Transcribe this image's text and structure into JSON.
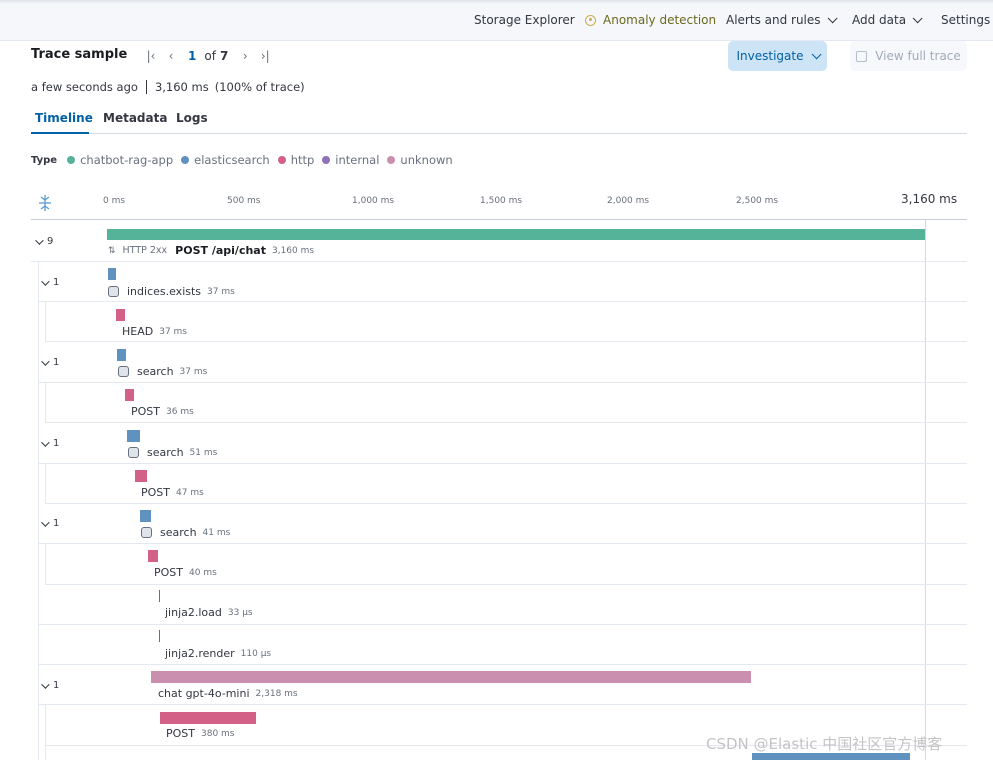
{
  "header": {
    "nav": [
      "Storage Explorer",
      "Anomaly detection",
      "Alerts and rules",
      "Add data",
      "Settings"
    ]
  },
  "trace": {
    "title": "Trace sample",
    "page_current": "1",
    "page_of": "of",
    "page_total": "7",
    "investigate_label": "Investigate",
    "view_full_label": "View full trace",
    "time_ago": "a few seconds ago",
    "duration": "3,160 ms",
    "percent": "(100% of trace)"
  },
  "tabs": [
    "Timeline",
    "Metadata",
    "Logs"
  ],
  "legend": {
    "label": "Type",
    "items": [
      {
        "name": "chatbot-rag-app",
        "color": "#54b399"
      },
      {
        "name": "elasticsearch",
        "color": "#6092c0"
      },
      {
        "name": "http",
        "color": "#d36086"
      },
      {
        "name": "internal",
        "color": "#9170b8"
      },
      {
        "name": "unknown",
        "color": "#ca8eae"
      }
    ]
  },
  "axis": {
    "ticks": [
      "0 ms",
      "500 ms",
      "1,000 ms",
      "1,500 ms",
      "2,000 ms",
      "2,500 ms"
    ],
    "end": "3,160 ms"
  },
  "spans": {
    "s0": {
      "count": "9",
      "status": "HTTP 2xx",
      "name": "POST /api/chat",
      "dur": "3,160 ms"
    },
    "s1": {
      "count": "1",
      "name": "indices.exists",
      "dur": "37 ms"
    },
    "s2": {
      "name": "HEAD",
      "dur": "37 ms"
    },
    "s3": {
      "count": "1",
      "name": "search",
      "dur": "37 ms"
    },
    "s4": {
      "name": "POST",
      "dur": "36 ms"
    },
    "s5": {
      "count": "1",
      "name": "search",
      "dur": "51 ms"
    },
    "s6": {
      "name": "POST",
      "dur": "47 ms"
    },
    "s7": {
      "count": "1",
      "name": "search",
      "dur": "41 ms"
    },
    "s8": {
      "name": "POST",
      "dur": "40 ms"
    },
    "s9": {
      "name": "jinja2.load",
      "dur": "33 μs"
    },
    "s10": {
      "name": "jinja2.render",
      "dur": "110 μs"
    },
    "s11": {
      "count": "1",
      "name": "chat gpt-4o-mini",
      "dur": "2,318 ms"
    },
    "s12": {
      "name": "POST",
      "dur": "380 ms"
    }
  },
  "watermark": "CSDN @Elastic 中国社区官方博客"
}
